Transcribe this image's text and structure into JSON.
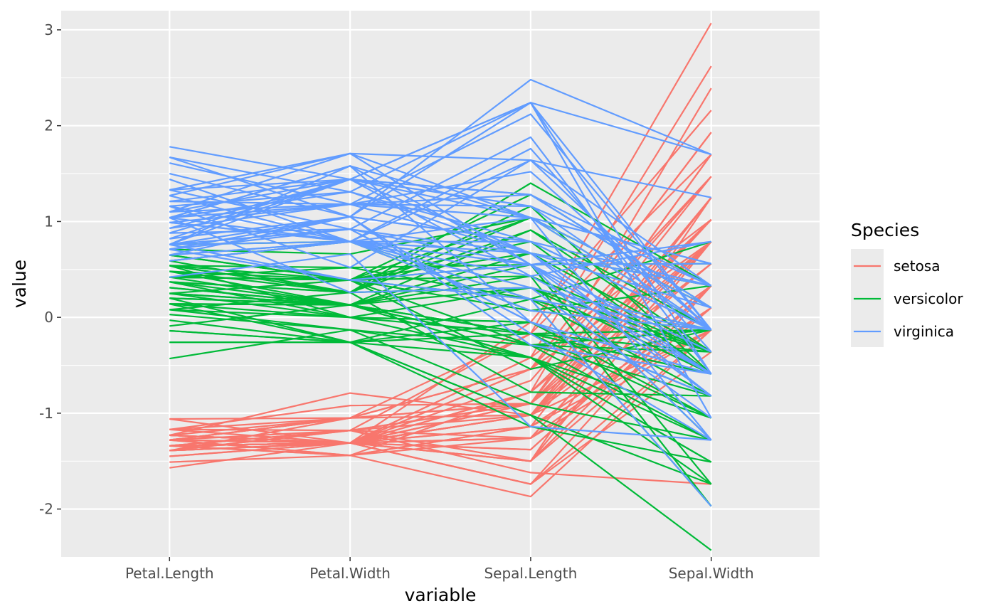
{
  "chart_data": {
    "type": "line",
    "subtype": "parallel-coordinates",
    "title": "",
    "xlabel": "variable",
    "ylabel": "value",
    "categories": [
      "Petal.Length",
      "Petal.Width",
      "Sepal.Length",
      "Sepal.Width"
    ],
    "ylim": [
      -2.5,
      3.2
    ],
    "yticks": [
      -2,
      -1,
      0,
      1,
      2,
      3
    ],
    "grid": true,
    "legend": {
      "title": "Species",
      "position": "right",
      "entries": [
        {
          "name": "setosa",
          "color": "#F8766D"
        },
        {
          "name": "versicolor",
          "color": "#00BA38"
        },
        {
          "name": "virginica",
          "color": "#619CFF"
        }
      ]
    },
    "series": [
      {
        "name": "setosa",
        "color": "#F8766D",
        "lines": [
          [
            -1.34,
            -1.31,
            -0.9,
            1.02
          ],
          [
            -1.34,
            -1.31,
            -1.14,
            -0.13
          ],
          [
            -1.39,
            -1.31,
            -1.38,
            0.33
          ],
          [
            -1.28,
            -1.31,
            -1.5,
            0.1
          ],
          [
            -1.34,
            -1.31,
            -1.02,
            1.25
          ],
          [
            -1.17,
            -1.05,
            -0.54,
            1.93
          ],
          [
            -1.34,
            -1.18,
            -1.5,
            0.79
          ],
          [
            -1.28,
            -1.31,
            -1.02,
            0.79
          ],
          [
            -1.34,
            -1.31,
            -1.74,
            -0.36
          ],
          [
            -1.28,
            -1.44,
            -1.14,
            0.1
          ],
          [
            -1.28,
            -1.31,
            -0.54,
            1.47
          ],
          [
            -1.23,
            -1.31,
            -1.26,
            0.79
          ],
          [
            -1.34,
            -1.44,
            -1.26,
            -0.13
          ],
          [
            -1.51,
            -1.44,
            -1.87,
            -0.13
          ],
          [
            -1.45,
            -1.31,
            -0.05,
            2.16
          ],
          [
            -1.28,
            -1.05,
            -0.17,
            3.07
          ],
          [
            -1.39,
            -1.05,
            -0.54,
            1.93
          ],
          [
            -1.34,
            -1.18,
            -0.9,
            1.02
          ],
          [
            -1.17,
            -1.18,
            -0.17,
            1.7
          ],
          [
            -1.28,
            -1.18,
            -0.9,
            1.7
          ],
          [
            -1.17,
            -1.31,
            -0.54,
            0.79
          ],
          [
            -1.28,
            -1.05,
            -0.9,
            1.47
          ],
          [
            -1.57,
            -1.31,
            -1.5,
            1.25
          ],
          [
            -1.17,
            -0.92,
            -0.9,
            0.56
          ],
          [
            -1.06,
            -1.31,
            -1.26,
            0.79
          ],
          [
            -1.23,
            -1.31,
            -1.02,
            -0.13
          ],
          [
            -1.23,
            -1.05,
            -1.02,
            0.79
          ],
          [
            -1.28,
            -1.31,
            -0.78,
            1.02
          ],
          [
            -1.34,
            -1.31,
            -0.78,
            0.79
          ],
          [
            -1.23,
            -1.31,
            -1.38,
            0.33
          ],
          [
            -1.23,
            -1.31,
            -1.26,
            0.1
          ],
          [
            -1.28,
            -1.05,
            -0.54,
            0.79
          ],
          [
            -1.28,
            -1.44,
            -0.78,
            2.39
          ],
          [
            -1.34,
            -1.31,
            -0.42,
            2.62
          ],
          [
            -1.28,
            -1.31,
            -1.14,
            0.1
          ],
          [
            -1.45,
            -1.31,
            -1.02,
            0.33
          ],
          [
            -1.39,
            -1.31,
            -0.42,
            1.02
          ],
          [
            -1.34,
            -1.44,
            -1.14,
            1.25
          ],
          [
            -1.39,
            -1.31,
            -1.74,
            -0.13
          ],
          [
            -1.28,
            -1.31,
            -0.9,
            0.79
          ],
          [
            -1.39,
            -1.18,
            -1.02,
            1.02
          ],
          [
            -1.39,
            -1.18,
            -1.62,
            -1.74
          ],
          [
            -1.39,
            -1.31,
            -1.74,
            0.33
          ],
          [
            -1.23,
            -0.79,
            -1.02,
            1.02
          ],
          [
            -1.06,
            -1.05,
            -0.9,
            1.7
          ],
          [
            -1.34,
            -1.18,
            -1.26,
            -0.13
          ],
          [
            -1.23,
            -1.31,
            -0.9,
            1.7
          ],
          [
            -1.34,
            -1.31,
            -1.5,
            0.33
          ],
          [
            -1.28,
            -1.31,
            -0.66,
            1.47
          ],
          [
            -1.34,
            -1.31,
            -1.02,
            0.56
          ]
        ]
      },
      {
        "name": "versicolor",
        "color": "#00BA38",
        "lines": [
          [
            0.54,
            0.26,
            1.4,
            0.33
          ],
          [
            0.42,
            0.39,
            0.67,
            0.33
          ],
          [
            0.65,
            0.39,
            1.28,
            0.1
          ],
          [
            0.14,
            0.13,
            -0.42,
            -1.74
          ],
          [
            0.48,
            0.39,
            0.79,
            -0.59
          ],
          [
            0.42,
            0.13,
            -0.17,
            -0.59
          ],
          [
            0.54,
            0.52,
            0.55,
            0.56
          ],
          [
            -0.26,
            -0.26,
            -1.14,
            -1.51
          ],
          [
            0.48,
            0.13,
            0.91,
            -0.36
          ],
          [
            0.08,
            0.26,
            -0.78,
            -0.82
          ],
          [
            -0.14,
            -0.26,
            -1.02,
            -2.43
          ],
          [
            0.25,
            0.39,
            0.07,
            -0.13
          ],
          [
            0.14,
            -0.26,
            0.19,
            -1.97
          ],
          [
            0.54,
            0.26,
            0.31,
            -0.36
          ],
          [
            -0.09,
            0.13,
            -0.29,
            -0.36
          ],
          [
            0.37,
            0.26,
            1.04,
            0.1
          ],
          [
            0.42,
            0.39,
            -0.29,
            -0.13
          ],
          [
            0.2,
            -0.26,
            -0.05,
            -0.82
          ],
          [
            0.42,
            0.39,
            0.43,
            -1.97
          ],
          [
            0.08,
            -0.13,
            -0.29,
            -1.28
          ],
          [
            0.59,
            0.79,
            0.07,
            0.33
          ],
          [
            0.14,
            0.13,
            0.31,
            -0.59
          ],
          [
            0.65,
            0.39,
            0.55,
            -1.28
          ],
          [
            0.54,
            0.0,
            0.31,
            -0.59
          ],
          [
            0.31,
            0.13,
            0.67,
            -0.36
          ],
          [
            0.37,
            0.26,
            0.91,
            -0.13
          ],
          [
            0.59,
            0.26,
            1.16,
            -0.59
          ],
          [
            0.71,
            0.66,
            1.04,
            -0.13
          ],
          [
            0.42,
            0.39,
            0.19,
            -0.36
          ],
          [
            -0.14,
            -0.26,
            -0.17,
            -1.05
          ],
          [
            0.03,
            -0.13,
            -0.42,
            -1.51
          ],
          [
            -0.03,
            -0.26,
            -0.42,
            -1.51
          ],
          [
            0.08,
            0.0,
            -0.05,
            -0.82
          ],
          [
            0.76,
            0.79,
            0.19,
            -0.82
          ],
          [
            0.42,
            0.39,
            -0.54,
            -0.13
          ],
          [
            0.42,
            0.52,
            0.19,
            0.79
          ],
          [
            0.54,
            0.39,
            1.04,
            0.1
          ],
          [
            0.37,
            0.13,
            0.55,
            -1.74
          ],
          [
            0.2,
            0.13,
            -0.29,
            -0.13
          ],
          [
            0.14,
            0.13,
            -0.42,
            -1.28
          ],
          [
            0.37,
            0.0,
            -0.42,
            -1.05
          ],
          [
            0.48,
            0.26,
            0.31,
            -0.13
          ],
          [
            0.14,
            0.0,
            -0.05,
            -1.05
          ],
          [
            -0.26,
            -0.26,
            -1.02,
            -1.74
          ],
          [
            0.25,
            0.13,
            -0.29,
            -0.82
          ],
          [
            0.25,
            0.0,
            -0.17,
            -0.13
          ],
          [
            0.25,
            0.13,
            -0.17,
            -0.36
          ],
          [
            0.31,
            0.13,
            0.43,
            -0.36
          ],
          [
            -0.43,
            -0.13,
            -0.9,
            -1.28
          ],
          [
            0.2,
            0.13,
            -0.17,
            -0.59
          ]
        ]
      },
      {
        "name": "virginica",
        "color": "#619CFF",
        "lines": [
          [
            1.27,
            1.71,
            0.55,
            0.56
          ],
          [
            0.76,
            0.92,
            -0.05,
            -0.82
          ],
          [
            1.21,
            1.18,
            1.52,
            -0.13
          ],
          [
            1.04,
            0.79,
            0.55,
            -0.36
          ],
          [
            1.16,
            1.31,
            0.79,
            -0.13
          ],
          [
            1.61,
            1.18,
            2.12,
            -0.13
          ],
          [
            0.42,
            0.66,
            -1.14,
            -1.28
          ],
          [
            1.44,
            0.79,
            1.76,
            -0.36
          ],
          [
            1.16,
            0.79,
            1.04,
            -1.28
          ],
          [
            1.33,
            1.71,
            1.64,
            1.25
          ],
          [
            0.76,
            1.05,
            0.79,
            0.33
          ],
          [
            0.88,
            0.92,
            0.67,
            -0.82
          ],
          [
            0.99,
            1.18,
            1.16,
            -0.13
          ],
          [
            0.71,
            1.05,
            -0.17,
            -1.28
          ],
          [
            0.76,
            1.58,
            -0.05,
            -0.59
          ],
          [
            0.88,
            1.44,
            0.67,
            0.33
          ],
          [
            0.99,
            0.79,
            0.79,
            -0.13
          ],
          [
            1.67,
            1.31,
            2.24,
            1.7
          ],
          [
            1.78,
            1.44,
            2.24,
            -1.05
          ],
          [
            0.71,
            0.39,
            0.19,
            -1.97
          ],
          [
            1.1,
            1.44,
            1.28,
            0.33
          ],
          [
            0.65,
            1.05,
            -0.29,
            -0.59
          ],
          [
            1.67,
            1.05,
            2.24,
            -0.59
          ],
          [
            0.65,
            0.79,
            0.55,
            -0.82
          ],
          [
            1.1,
            1.18,
            1.04,
            0.56
          ],
          [
            1.27,
            0.79,
            1.64,
            0.33
          ],
          [
            0.59,
            0.79,
            0.43,
            -0.59
          ],
          [
            0.65,
            0.79,
            0.31,
            -0.13
          ],
          [
            1.04,
            1.18,
            0.67,
            -0.59
          ],
          [
            1.16,
            0.52,
            1.64,
            -0.13
          ],
          [
            1.33,
            0.92,
            1.88,
            -0.59
          ],
          [
            1.5,
            1.05,
            2.48,
            1.7
          ],
          [
            1.04,
            1.31,
            0.67,
            -0.59
          ],
          [
            0.76,
            0.39,
            0.55,
            -0.59
          ],
          [
            1.04,
            0.26,
            0.31,
            -1.05
          ],
          [
            1.33,
            1.44,
            2.24,
            -0.13
          ],
          [
            1.04,
            1.58,
            0.55,
            0.79
          ],
          [
            0.99,
            0.79,
            0.67,
            0.1
          ],
          [
            0.59,
            0.79,
            0.19,
            -0.13
          ],
          [
            0.93,
            1.18,
            1.28,
            0.1
          ],
          [
            1.04,
            1.58,
            1.04,
            0.1
          ],
          [
            0.76,
            1.44,
            1.28,
            0.1
          ],
          [
            0.76,
            0.92,
            -0.05,
            -0.82
          ],
          [
            1.21,
            1.44,
            1.16,
            0.33
          ],
          [
            1.1,
            1.71,
            1.04,
            0.56
          ],
          [
            0.82,
            1.44,
            1.04,
            -0.13
          ],
          [
            0.71,
            0.92,
            0.55,
            -1.28
          ],
          [
            0.82,
            1.05,
            0.79,
            -0.13
          ],
          [
            0.93,
            1.44,
            0.43,
            0.79
          ],
          [
            0.76,
            0.79,
            0.07,
            -0.13
          ]
        ]
      }
    ]
  }
}
